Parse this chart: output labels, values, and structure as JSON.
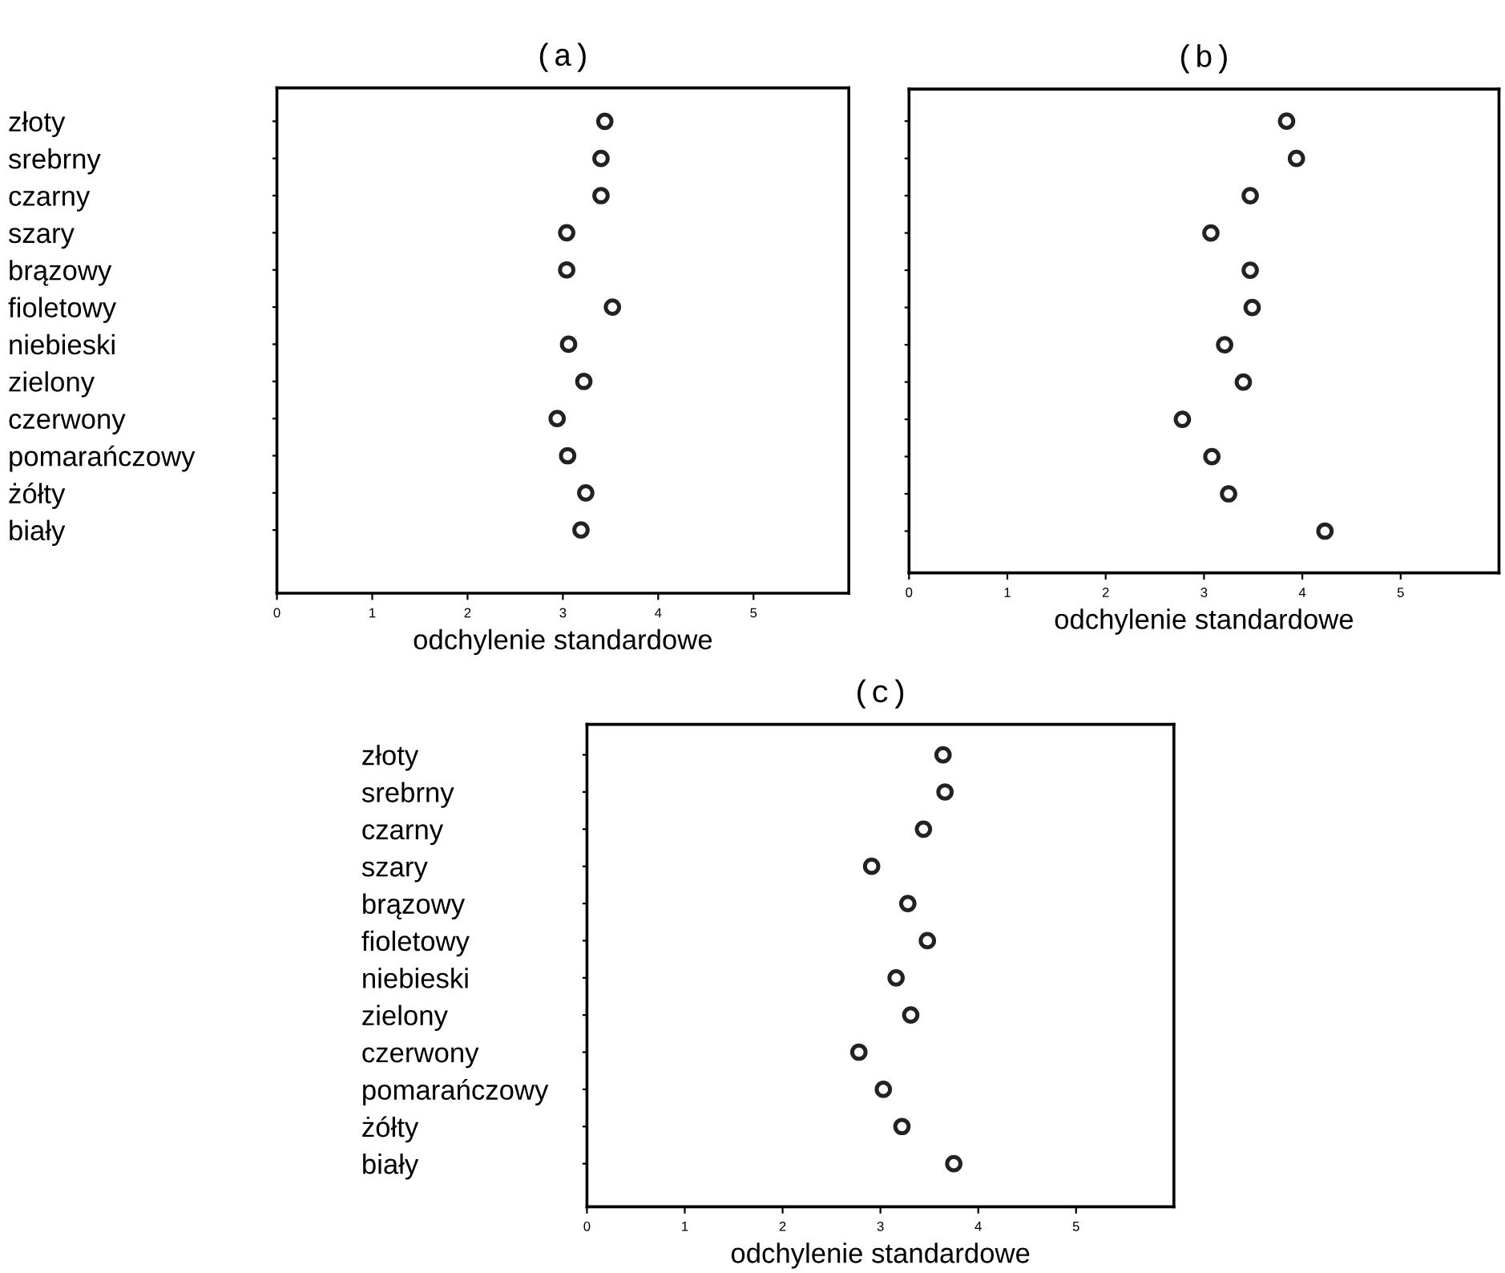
{
  "chart_data": [
    {
      "type": "scatter",
      "title": "(a)",
      "xlabel": "odchylenie standardowe",
      "orientation": "horizontal",
      "marker": "circle",
      "grid": false,
      "legend": false,
      "categories": [
        "złoty",
        "srebrny",
        "czarny",
        "szary",
        "brązowy",
        "fioletowy",
        "niebieski",
        "zielony",
        "czerwony",
        "pomarańczowy",
        "żółty",
        "biały"
      ],
      "series": [
        {
          "color": "#222222",
          "values": [
            3.44,
            3.4,
            3.4,
            3.04,
            3.04,
            3.52,
            3.06,
            3.22,
            2.94,
            3.05,
            3.24,
            3.19
          ]
        }
      ],
      "xlim": [
        0,
        6
      ],
      "xticks": [
        0,
        1,
        2,
        3,
        4,
        5
      ]
    },
    {
      "type": "scatter",
      "title": "(b)",
      "xlabel": "odchylenie standardowe",
      "orientation": "horizontal",
      "marker": "circle",
      "grid": false,
      "legend": false,
      "tick_labels": "x",
      "categories": [
        null,
        null,
        null,
        null,
        null,
        null,
        null,
        null,
        null,
        null,
        null,
        null
      ],
      "series": [
        {
          "color": "#222222",
          "values": [
            3.84,
            3.94,
            3.47,
            3.07,
            3.47,
            3.49,
            3.21,
            3.4,
            2.78,
            3.08,
            3.25,
            4.23
          ]
        }
      ],
      "xlim": [
        0,
        6
      ],
      "xticks": [
        0,
        1,
        2,
        3,
        4,
        5
      ]
    },
    {
      "type": "scatter",
      "title": "(c)",
      "xlabel": "odchylenie standardowe",
      "orientation": "horizontal",
      "marker": "circle",
      "grid": false,
      "legend": false,
      "categories": [
        "złoty",
        "srebrny",
        "czarny",
        "szary",
        "brązowy",
        "fioletowy",
        "niebieski",
        "zielony",
        "czerwony",
        "pomarańczowy",
        "żółty",
        "biały"
      ],
      "series": [
        {
          "color": "#222222",
          "values": [
            3.64,
            3.66,
            3.44,
            2.91,
            3.28,
            3.48,
            3.16,
            3.31,
            2.78,
            3.03,
            3.22,
            3.75
          ]
        }
      ],
      "xlim": [
        0,
        6
      ],
      "xticks": [
        0,
        1,
        2,
        3,
        4,
        5
      ]
    }
  ]
}
